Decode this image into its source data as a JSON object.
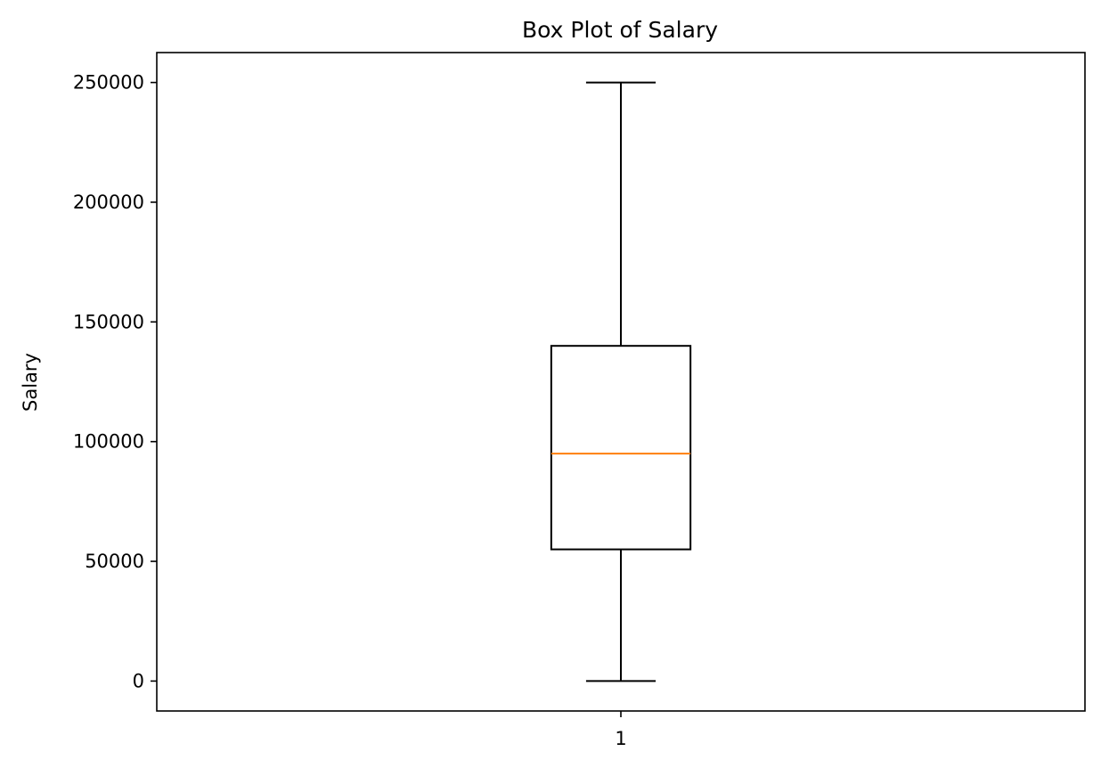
{
  "chart_data": {
    "type": "box",
    "title": "Box Plot of Salary",
    "xlabel": "",
    "ylabel": "Salary",
    "categories": [
      "1"
    ],
    "boxes": [
      {
        "label": "1",
        "min": 0,
        "q1": 55000,
        "median": 95000,
        "q3": 140000,
        "max": 250000
      }
    ],
    "ylim": [
      -12500,
      262500
    ],
    "y_ticks": [
      0,
      50000,
      100000,
      150000,
      200000,
      250000
    ],
    "grid": false,
    "colors": {
      "box": "#000000",
      "median": "#ff7f0e",
      "whisker": "#000000"
    }
  }
}
